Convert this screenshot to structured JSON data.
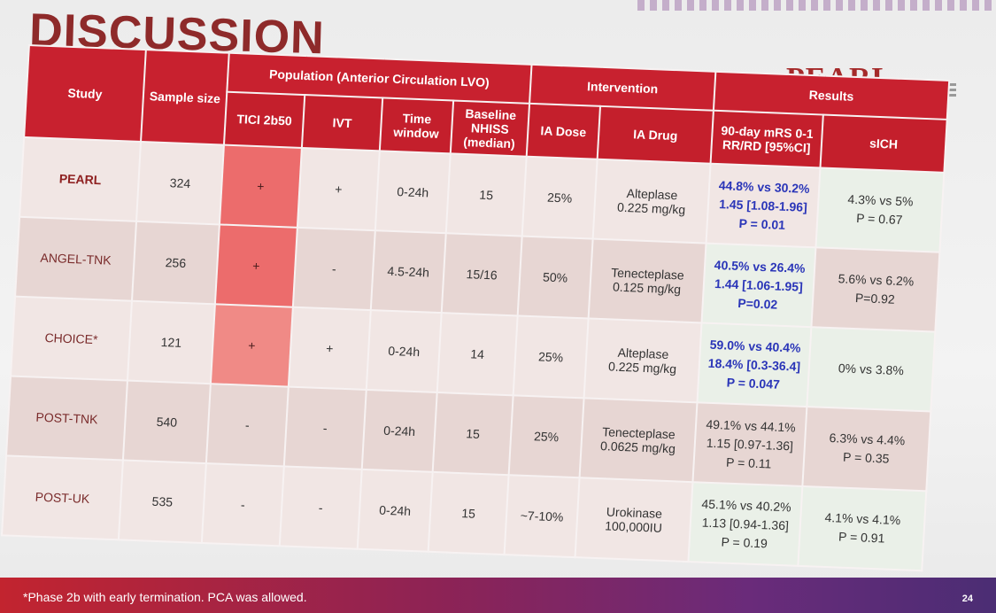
{
  "slide": {
    "title": "DISCUSSION",
    "logo_text": "PEARL",
    "footnote": "*Phase 2b with early termination. PCA was allowed.",
    "page_number": "24",
    "accent_color": "#c8212f"
  },
  "table": {
    "headers": {
      "study": "Study",
      "sample_size": "Sample size",
      "population": "Population (Anterior Circulation LVO)",
      "intervention": "Intervention",
      "results": "Results",
      "tici": "TICI 2b50",
      "ivt": "IVT",
      "time_window": "Time window",
      "baseline_nihss": "Baseline NHISS (median)",
      "ia_dose": "IA Dose",
      "ia_drug": "IA Drug",
      "mrs": "90-day mRS 0-1 RR/RD [95%CI]",
      "sich": "sICH"
    },
    "rows": [
      {
        "study": "PEARL",
        "sample": "324",
        "tici": "+",
        "ivt": "+",
        "time": "0-24h",
        "nihss": "15",
        "dose": "25%",
        "drug_1": "Alteplase",
        "drug_2": "0.225 mg/kg",
        "mrs_1": "44.8% vs 30.2%",
        "mrs_2": "1.45 [1.08-1.96]",
        "mrs_3": "P = 0.01",
        "sich_1": "4.3% vs 5%",
        "sich_2": "P = 0.67"
      },
      {
        "study": "ANGEL-TNK",
        "sample": "256",
        "tici": "+",
        "ivt": "-",
        "time": "4.5-24h",
        "nihss": "15/16",
        "dose": "50%",
        "drug_1": "Tenecteplase",
        "drug_2": "0.125 mg/kg",
        "mrs_1": "40.5% vs 26.4%",
        "mrs_2": "1.44 [1.06-1.95]",
        "mrs_3": "P=0.02",
        "sich_1": "5.6% vs 6.2%",
        "sich_2": "P=0.92"
      },
      {
        "study": "CHOICE*",
        "sample": "121",
        "tici": "+",
        "ivt": "+",
        "time": "0-24h",
        "nihss": "14",
        "dose": "25%",
        "drug_1": "Alteplase",
        "drug_2": "0.225 mg/kg",
        "mrs_1": "59.0% vs 40.4%",
        "mrs_2": "18.4% [0.3-36.4]",
        "mrs_3": "P = 0.047",
        "sich_1": "0% vs 3.8%",
        "sich_2": ""
      },
      {
        "study": "POST-TNK",
        "sample": "540",
        "tici": "-",
        "ivt": "-",
        "time": "0-24h",
        "nihss": "15",
        "dose": "25%",
        "drug_1": "Tenecteplase",
        "drug_2": "0.0625 mg/kg",
        "mrs_1": "49.1% vs 44.1%",
        "mrs_2": "1.15 [0.97-1.36]",
        "mrs_3": "P = 0.11",
        "sich_1": "6.3% vs 4.4%",
        "sich_2": "P = 0.35"
      },
      {
        "study": "POST-UK",
        "sample": "535",
        "tici": "-",
        "ivt": "-",
        "time": "0-24h",
        "nihss": "15",
        "dose": "~7-10%",
        "drug_1": "Urokinase",
        "drug_2": "100,000IU",
        "mrs_1": "45.1% vs 40.2%",
        "mrs_2": "1.13 [0.94-1.36]",
        "mrs_3": "P = 0.19",
        "sich_1": "4.1% vs 4.1%",
        "sich_2": "P = 0.91"
      }
    ]
  }
}
